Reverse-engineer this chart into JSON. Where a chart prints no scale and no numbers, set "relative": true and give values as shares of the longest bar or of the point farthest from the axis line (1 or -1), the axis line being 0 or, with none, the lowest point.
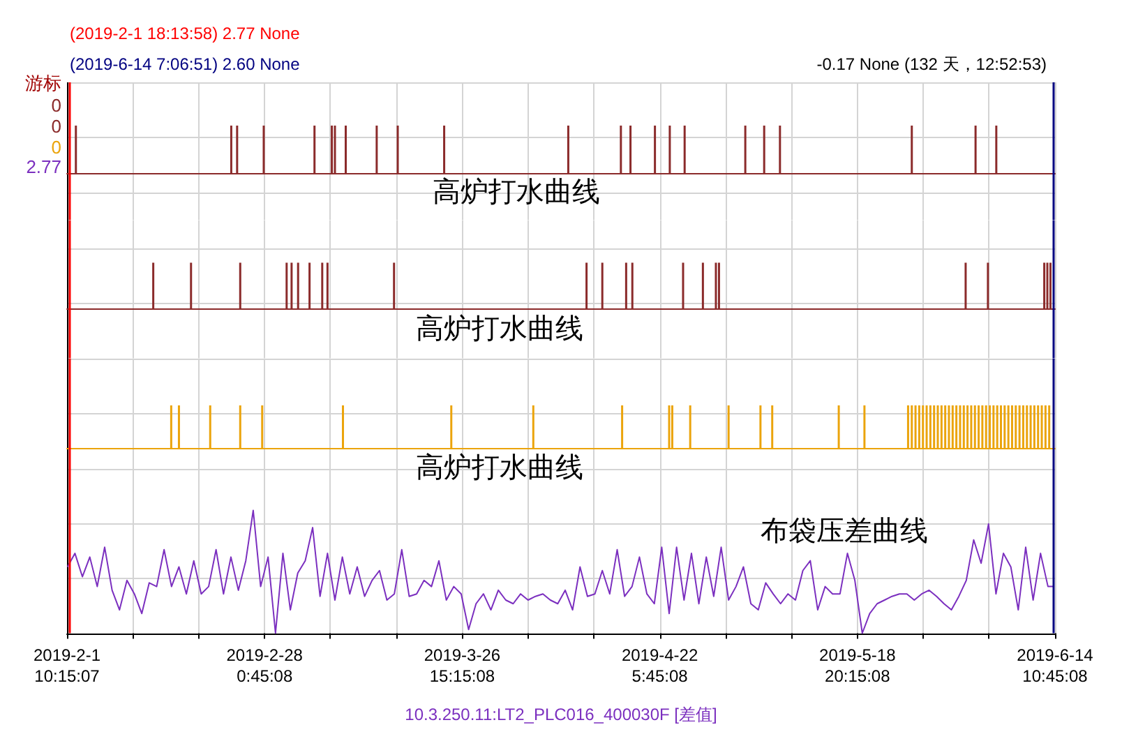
{
  "chart_data": [
    {
      "type": "bar",
      "title": "高炉打水曲线",
      "relative": true,
      "color": "#8b2b2b",
      "tick_labels": false,
      "grid": true,
      "annotations": [
        "(2019-2-1 18:13:58) 2.77 None",
        "(2019-6-14 7:06:51) 2.60 None",
        "-0.17 None (132 天，12:52:53)",
        "游标",
        "0",
        "0",
        "0",
        "2.77"
      ],
      "xlim": [
        "2019-02-01T10:15",
        "2019-06-14T10:45"
      ],
      "xticks": [
        {
          "value": "2019-02-01T10:15",
          "label": null
        },
        {
          "value": "2019-02-10T06:45",
          "label": null
        },
        {
          "value": "2019-02-19T03:15",
          "label": null
        },
        {
          "value": "2019-02-28T00:45",
          "label": null
        },
        {
          "value": "2019-03-08T21:15",
          "label": null
        },
        {
          "value": "2019-03-17T17:45",
          "label": null
        },
        {
          "value": "2019-03-26T15:15",
          "label": null
        },
        {
          "value": "2019-04-04T11:45",
          "label": null
        },
        {
          "value": "2019-04-13T08:15",
          "label": null
        },
        {
          "value": "2019-04-22T05:45",
          "label": null
        },
        {
          "value": "2019-05-01T02:15",
          "label": null
        },
        {
          "value": "2019-05-09T22:45",
          "label": null
        },
        {
          "value": "2019-05-18T20:15",
          "label": null
        },
        {
          "value": "2019-05-27T16:45",
          "label": null
        },
        {
          "value": "2019-06-05T13:15",
          "label": null
        },
        {
          "value": "2019-06-14T10:45",
          "label": null
        }
      ],
      "ref_lines": [
        {
          "axis": "x",
          "value": "2019-02-01T18:13",
          "color": "#ff0000"
        },
        {
          "axis": "x",
          "value": "2019-06-14T07:06",
          "color": "#000080"
        }
      ],
      "x": [
        "2019-02-02T15:00",
        "2019-02-23T13:00",
        "2019-02-24T08:00",
        "2019-02-27T22:00",
        "2019-03-06T18:00",
        "2019-03-09T02:00",
        "2019-03-09T12:00",
        "2019-03-10T23:00",
        "2019-03-15T03:00",
        "2019-03-17T23:00",
        "2019-03-24T05:00",
        "2019-04-09T22:00",
        "2019-04-17T00:00",
        "2019-04-18T07:00",
        "2019-04-21T14:00",
        "2019-04-23T14:00",
        "2019-04-25T14:00",
        "2019-05-03T18:00",
        "2019-05-06T07:00",
        "2019-05-08T10:00",
        "2019-05-26T04:00",
        "2019-06-03T18:00",
        "2019-06-06T13:00"
      ],
      "values": [
        1,
        1,
        1,
        1,
        1,
        1,
        1,
        1,
        1,
        1,
        1,
        1,
        1,
        1,
        1,
        1,
        1,
        1,
        1,
        1,
        1,
        1,
        1
      ]
    },
    {
      "type": "bar",
      "title": "高炉打水曲线",
      "relative": true,
      "color": "#8b2b2b",
      "tick_labels": false,
      "grid": true,
      "xlim": [
        "2019-02-01T10:15",
        "2019-06-14T10:45"
      ],
      "xticks": [
        {
          "value": "2019-02-01T10:15",
          "label": null
        },
        {
          "value": "2019-02-10T06:45",
          "label": null
        },
        {
          "value": "2019-02-19T03:15",
          "label": null
        },
        {
          "value": "2019-02-28T00:45",
          "label": null
        },
        {
          "value": "2019-03-08T21:15",
          "label": null
        },
        {
          "value": "2019-03-17T17:45",
          "label": null
        },
        {
          "value": "2019-03-26T15:15",
          "label": null
        },
        {
          "value": "2019-04-04T11:45",
          "label": null
        },
        {
          "value": "2019-04-13T08:15",
          "label": null
        },
        {
          "value": "2019-04-22T05:45",
          "label": null
        },
        {
          "value": "2019-05-01T02:15",
          "label": null
        },
        {
          "value": "2019-05-09T22:45",
          "label": null
        },
        {
          "value": "2019-05-18T20:15",
          "label": null
        },
        {
          "value": "2019-05-27T16:45",
          "label": null
        },
        {
          "value": "2019-06-05T13:15",
          "label": null
        },
        {
          "value": "2019-06-14T10:45",
          "label": null
        }
      ],
      "ref_lines": [
        {
          "axis": "x",
          "value": "2019-02-01T18:13",
          "color": "#ff0000"
        },
        {
          "axis": "x",
          "value": "2019-06-14T07:06",
          "color": "#000080"
        }
      ],
      "x": [
        "2019-02-13T01:00",
        "2019-02-18T03:00",
        "2019-02-24T18:00",
        "2019-03-03T00:00",
        "2019-03-03T16:00",
        "2019-03-04T13:00",
        "2019-03-06T02:00",
        "2019-03-07T19:00",
        "2019-03-08T12:00",
        "2019-03-17T11:00",
        "2019-04-12T09:00",
        "2019-04-14T12:00",
        "2019-04-17T17:00",
        "2019-04-18T13:00",
        "2019-04-25T09:00",
        "2019-04-28T01:00",
        "2019-04-29T19:00",
        "2019-04-30T05:00",
        "2019-06-02T10:00",
        "2019-06-05T10:00",
        "2019-06-13T00:00",
        "2019-06-13T10:00",
        "2019-06-13T20:00"
      ],
      "values": [
        1,
        1,
        1,
        1,
        1,
        1,
        1,
        1,
        1,
        1,
        1,
        1,
        1,
        1,
        1,
        1,
        1,
        1,
        1,
        1,
        1,
        1,
        1
      ]
    },
    {
      "type": "bar",
      "title": "高炉打水曲线",
      "relative": true,
      "color": "#eba40c",
      "tick_labels": false,
      "grid": true,
      "xlim": [
        "2019-02-01T10:15",
        "2019-06-14T10:45"
      ],
      "xticks": [
        {
          "value": "2019-02-01T10:15",
          "label": null
        },
        {
          "value": "2019-02-10T06:45",
          "label": null
        },
        {
          "value": "2019-02-19T03:15",
          "label": null
        },
        {
          "value": "2019-02-28T00:45",
          "label": null
        },
        {
          "value": "2019-03-08T21:15",
          "label": null
        },
        {
          "value": "2019-03-17T17:45",
          "label": null
        },
        {
          "value": "2019-03-26T15:15",
          "label": null
        },
        {
          "value": "2019-04-04T11:45",
          "label": null
        },
        {
          "value": "2019-04-13T08:15",
          "label": null
        },
        {
          "value": "2019-04-22T05:45",
          "label": null
        },
        {
          "value": "2019-05-01T02:15",
          "label": null
        },
        {
          "value": "2019-05-09T22:45",
          "label": null
        },
        {
          "value": "2019-05-18T20:15",
          "label": null
        },
        {
          "value": "2019-05-27T16:45",
          "label": null
        },
        {
          "value": "2019-06-05T13:15",
          "label": null
        },
        {
          "value": "2019-06-14T10:45",
          "label": null
        }
      ],
      "ref_lines": [
        {
          "axis": "x",
          "value": "2019-02-01T18:13",
          "color": "#ff0000"
        },
        {
          "axis": "x",
          "value": "2019-06-14T07:06",
          "color": "#000080"
        }
      ],
      "x": [
        "2019-02-15T11:00",
        "2019-02-16T12:00",
        "2019-02-20T17:00",
        "2019-02-24T18:00",
        "2019-02-27T17:00",
        "2019-03-10T14:00",
        "2019-03-25T04:00",
        "2019-04-05T05:00",
        "2019-04-17T04:00",
        "2019-04-23T12:00",
        "2019-04-23T22:00",
        "2019-04-26T08:00",
        "2019-05-01T12:00",
        "2019-05-05T19:00",
        "2019-05-07T09:00",
        "2019-05-16T08:00",
        "2019-05-19T19:00",
        "2019-05-25T16:00",
        "2019-05-26T04:00",
        "2019-05-26T16:00",
        "2019-05-27T04:00",
        "2019-05-27T16:00",
        "2019-05-28T04:00",
        "2019-05-28T16:00",
        "2019-05-29T04:00",
        "2019-05-29T16:00",
        "2019-05-30T04:00",
        "2019-05-30T16:00",
        "2019-05-31T04:00",
        "2019-05-31T16:00",
        "2019-06-01T04:00",
        "2019-06-01T16:00",
        "2019-06-02T04:00",
        "2019-06-02T16:00",
        "2019-06-03T04:00",
        "2019-06-03T16:00",
        "2019-06-04T04:00",
        "2019-06-04T16:00",
        "2019-06-05T04:00",
        "2019-06-05T16:00",
        "2019-06-06T04:00",
        "2019-06-06T16:00",
        "2019-06-07T04:00",
        "2019-06-07T16:00",
        "2019-06-08T04:00",
        "2019-06-08T16:00",
        "2019-06-09T04:00",
        "2019-06-09T16:00",
        "2019-06-10T04:00",
        "2019-06-10T16:00",
        "2019-06-11T04:00",
        "2019-06-11T16:00",
        "2019-06-12T04:00",
        "2019-06-12T16:00",
        "2019-06-13T04:00",
        "2019-06-13T16:00"
      ],
      "values": [
        1,
        1,
        1,
        1,
        1,
        1,
        1,
        1,
        1,
        1,
        1,
        1,
        1,
        1,
        1,
        1,
        1,
        1,
        1,
        1,
        1,
        1,
        1,
        1,
        1,
        1,
        1,
        1,
        1,
        1,
        1,
        1,
        1,
        1,
        1,
        1,
        1,
        1,
        1,
        1,
        1,
        1,
        1,
        1,
        1,
        1,
        1,
        1,
        1,
        1,
        1,
        1,
        1,
        1,
        1,
        1
      ]
    },
    {
      "type": "line",
      "title": "布袋压差曲线",
      "xlabel": "10.3.250.11:LT2_PLC016_400030F [差值]",
      "relative": true,
      "color": "#7b2fbf",
      "marker": "none",
      "tick_labels": "x",
      "grid": true,
      "xlim": [
        "2019-02-01T10:15",
        "2019-06-14T10:45"
      ],
      "xticks": [
        {
          "value": "2019-02-01T10:15",
          "label": "2019-2-1\n10:15:07"
        },
        {
          "value": "2019-02-10T06:45",
          "label": null
        },
        {
          "value": "2019-02-19T03:15",
          "label": null
        },
        {
          "value": "2019-02-28T00:45",
          "label": "2019-2-28\n0:45:08"
        },
        {
          "value": "2019-03-08T21:15",
          "label": null
        },
        {
          "value": "2019-03-17T17:45",
          "label": null
        },
        {
          "value": "2019-03-26T15:15",
          "label": "2019-3-26\n15:15:08"
        },
        {
          "value": "2019-04-04T11:45",
          "label": null
        },
        {
          "value": "2019-04-13T08:15",
          "label": null
        },
        {
          "value": "2019-04-22T05:45",
          "label": "2019-4-22\n5:45:08"
        },
        {
          "value": "2019-05-01T02:15",
          "label": null
        },
        {
          "value": "2019-05-09T22:45",
          "label": null
        },
        {
          "value": "2019-05-18T20:15",
          "label": "2019-5-18\n20:15:08"
        },
        {
          "value": "2019-05-27T16:45",
          "label": null
        },
        {
          "value": "2019-06-05T13:15",
          "label": null
        },
        {
          "value": "2019-06-14T10:45",
          "label": "2019-6-14\n10:45:08"
        }
      ],
      "ref_lines": [
        {
          "axis": "x",
          "value": "2019-02-01T18:13",
          "color": "#ff0000"
        },
        {
          "axis": "x",
          "value": "2019-06-14T07:06",
          "color": "#000080"
        }
      ],
      "x": [
        "2019-02-01T12:00",
        "2019-02-02T12:00",
        "2019-02-03T12:00",
        "2019-02-04T12:00",
        "2019-02-05T12:00",
        "2019-02-06T12:00",
        "2019-02-07T12:00",
        "2019-02-08T12:00",
        "2019-02-09T12:00",
        "2019-02-10T12:00",
        "2019-02-11T12:00",
        "2019-02-12T12:00",
        "2019-02-13T12:00",
        "2019-02-14T12:00",
        "2019-02-15T12:00",
        "2019-02-16T12:00",
        "2019-02-17T12:00",
        "2019-02-18T12:00",
        "2019-02-19T12:00",
        "2019-02-20T12:00",
        "2019-02-21T12:00",
        "2019-02-22T12:00",
        "2019-02-23T12:00",
        "2019-02-24T12:00",
        "2019-02-25T12:00",
        "2019-02-26T12:00",
        "2019-02-27T12:00",
        "2019-02-28T12:00",
        "2019-03-01T12:00",
        "2019-03-02T12:00",
        "2019-03-03T12:00",
        "2019-03-04T12:00",
        "2019-03-05T12:00",
        "2019-03-06T12:00",
        "2019-03-07T12:00",
        "2019-03-08T12:00",
        "2019-03-09T12:00",
        "2019-03-10T12:00",
        "2019-03-11T12:00",
        "2019-03-12T12:00",
        "2019-03-13T12:00",
        "2019-03-14T12:00",
        "2019-03-15T12:00",
        "2019-03-16T12:00",
        "2019-03-17T12:00",
        "2019-03-18T12:00",
        "2019-03-19T12:00",
        "2019-03-20T12:00",
        "2019-03-21T12:00",
        "2019-03-22T12:00",
        "2019-03-23T12:00",
        "2019-03-24T12:00",
        "2019-03-25T12:00",
        "2019-03-26T12:00",
        "2019-03-27T12:00",
        "2019-03-28T12:00",
        "2019-03-29T12:00",
        "2019-03-30T12:00",
        "2019-03-31T12:00",
        "2019-04-01T12:00",
        "2019-04-02T12:00",
        "2019-04-03T12:00",
        "2019-04-04T12:00",
        "2019-04-05T12:00",
        "2019-04-06T12:00",
        "2019-04-07T12:00",
        "2019-04-08T12:00",
        "2019-04-09T12:00",
        "2019-04-10T12:00",
        "2019-04-11T12:00",
        "2019-04-12T12:00",
        "2019-04-13T12:00",
        "2019-04-14T12:00",
        "2019-04-15T12:00",
        "2019-04-16T12:00",
        "2019-04-17T12:00",
        "2019-04-18T12:00",
        "2019-04-19T12:00",
        "2019-04-20T12:00",
        "2019-04-21T12:00",
        "2019-04-22T12:00",
        "2019-04-23T12:00",
        "2019-04-24T12:00",
        "2019-04-25T12:00",
        "2019-04-26T12:00",
        "2019-04-27T12:00",
        "2019-04-28T12:00",
        "2019-04-29T12:00",
        "2019-04-30T12:00",
        "2019-05-01T12:00",
        "2019-05-02T12:00",
        "2019-05-03T12:00",
        "2019-05-04T12:00",
        "2019-05-05T12:00",
        "2019-05-06T12:00",
        "2019-05-07T12:00",
        "2019-05-08T12:00",
        "2019-05-09T12:00",
        "2019-05-10T12:00",
        "2019-05-11T12:00",
        "2019-05-12T12:00",
        "2019-05-13T12:00",
        "2019-05-14T12:00",
        "2019-05-15T12:00",
        "2019-05-16T12:00",
        "2019-05-17T12:00",
        "2019-05-18T12:00",
        "2019-05-19T12:00",
        "2019-05-20T12:00",
        "2019-05-21T12:00",
        "2019-05-22T12:00",
        "2019-05-23T12:00",
        "2019-05-24T12:00",
        "2019-05-25T12:00",
        "2019-05-26T12:00",
        "2019-05-27T12:00",
        "2019-05-28T12:00",
        "2019-05-29T12:00",
        "2019-05-30T12:00",
        "2019-05-31T12:00",
        "2019-06-01T12:00",
        "2019-06-02T12:00",
        "2019-06-03T12:00",
        "2019-06-04T12:00",
        "2019-06-05T12:00",
        "2019-06-06T12:00",
        "2019-06-07T12:00",
        "2019-06-08T12:00",
        "2019-06-09T12:00",
        "2019-06-10T12:00",
        "2019-06-11T12:00",
        "2019-06-12T12:00",
        "2019-06-13T12:00",
        "2019-06-14T06:00"
      ],
      "values": [
        0.54,
        0.65,
        0.46,
        0.62,
        0.38,
        0.7,
        0.35,
        0.19,
        0.43,
        0.32,
        0.16,
        0.41,
        0.38,
        0.68,
        0.38,
        0.54,
        0.32,
        0.59,
        0.32,
        0.38,
        0.68,
        0.32,
        0.62,
        0.35,
        0.59,
        1,
        0.38,
        0.62,
        0,
        0.65,
        0.19,
        0.49,
        0.59,
        0.86,
        0.3,
        0.65,
        0.27,
        0.62,
        0.32,
        0.54,
        0.3,
        0.43,
        0.51,
        0.27,
        0.32,
        0.68,
        0.3,
        0.32,
        0.43,
        0.38,
        0.59,
        0.27,
        0.38,
        0.32,
        0.03,
        0.24,
        0.32,
        0.19,
        0.35,
        0.27,
        0.24,
        0.32,
        0.27,
        0.3,
        0.32,
        0.27,
        0.24,
        0.35,
        0.19,
        0.54,
        0.3,
        0.32,
        0.51,
        0.32,
        0.68,
        0.3,
        0.38,
        0.62,
        0.32,
        0.24,
        0.7,
        0.16,
        0.7,
        0.27,
        0.65,
        0.24,
        0.62,
        0.3,
        0.7,
        0.27,
        0.38,
        0.54,
        0.24,
        0.19,
        0.41,
        0.32,
        0.24,
        0.32,
        0.27,
        0.51,
        0.59,
        0.19,
        0.38,
        0.32,
        0.32,
        0.65,
        0.43,
        0,
        0.16,
        0.24,
        0.27,
        0.3,
        0.32,
        0.32,
        0.27,
        0.32,
        0.35,
        0.3,
        0.24,
        0.19,
        0.3,
        0.43,
        0.76,
        0.57,
        0.89,
        0.32,
        0.65,
        0.54,
        0.19,
        0.7,
        0.27,
        0.65,
        0.38,
        0.38
      ]
    }
  ]
}
